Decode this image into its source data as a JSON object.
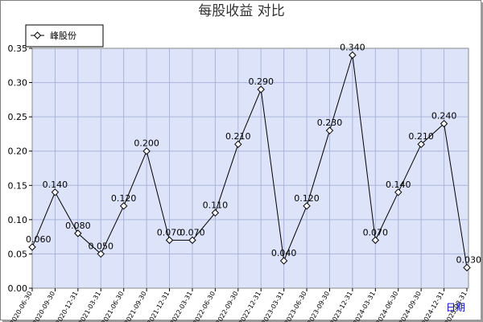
{
  "chart_data": {
    "type": "line",
    "title": "每股收益 对比",
    "xlabel": "日期",
    "ylabel": "",
    "ylim": [
      0,
      0.35
    ],
    "y_ticks": [
      "0.00",
      "0.05",
      "0.10",
      "0.15",
      "0.20",
      "0.25",
      "0.30",
      "0.35"
    ],
    "grid": true,
    "legend_position": "top-left",
    "categories": [
      "2020-06-30",
      "2020-09-30",
      "2020-12-31",
      "2021-03-31",
      "2021-06-30",
      "2021-09-30",
      "2021-12-31",
      "2022-03-31",
      "2022-06-30",
      "2022-09-30",
      "2022-12-31",
      "2023-03-31",
      "2023-06-30",
      "2023-09-30",
      "2023-12-31",
      "2024-03-31",
      "2024-06-30",
      "2024-09-30",
      "2024-12-31",
      "2025-03-31"
    ],
    "series": [
      {
        "name": "峰股份",
        "values": [
          0.06,
          0.14,
          0.08,
          0.05,
          0.12,
          0.2,
          0.07,
          0.07,
          0.11,
          0.21,
          0.29,
          0.04,
          0.12,
          0.23,
          0.34,
          0.07,
          0.14,
          0.21,
          0.24,
          0.03
        ],
        "labels": [
          "0.060",
          "0.140",
          "0.080",
          "0.050",
          "0.120",
          "0.200",
          "0.070",
          "0.070",
          "0.110",
          "0.210",
          "0.290",
          "0.040",
          "0.120",
          "0.230",
          "0.340",
          "0.070",
          "0.140",
          "0.210",
          "0.240",
          "0.030"
        ]
      }
    ],
    "colors": {
      "plot_background": "#dde3f8",
      "grid": "#a9b4dc",
      "line": "#000000",
      "marker_fill": "#ffffff",
      "x_axis_label": "#0000c0"
    }
  }
}
